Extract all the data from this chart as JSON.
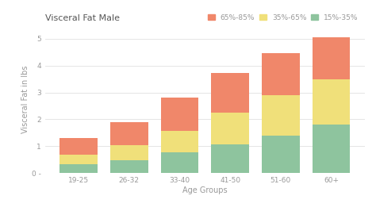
{
  "categories": [
    "19-25",
    "26-32",
    "33-40",
    "41-50",
    "51-60",
    "60+"
  ],
  "title": "Visceral Fat Male",
  "xlabel": "Age Groups",
  "ylabel": "Visceral Fat in lbs",
  "legend_labels": [
    "65%-85%",
    "35%-65%",
    "15%-35%"
  ],
  "colors": [
    "#f0876a",
    "#f0e07a",
    "#8ec49e"
  ],
  "segments": {
    "green_15_35": [
      0.33,
      0.48,
      0.78,
      1.08,
      1.38,
      1.82
    ],
    "yellow_35_65": [
      0.35,
      0.55,
      0.8,
      1.18,
      1.52,
      1.68
    ],
    "salmon_65_85": [
      0.62,
      0.87,
      1.22,
      1.47,
      1.57,
      1.55
    ]
  },
  "ylim": [
    0,
    5.5
  ],
  "yticks": [
    0,
    1,
    2,
    3,
    4,
    5
  ],
  "background_color": "#ffffff",
  "grid_color": "#e0e0e0",
  "title_fontsize": 8,
  "label_fontsize": 7,
  "tick_fontsize": 6.5,
  "legend_fontsize": 6.5,
  "bar_width": 0.75
}
